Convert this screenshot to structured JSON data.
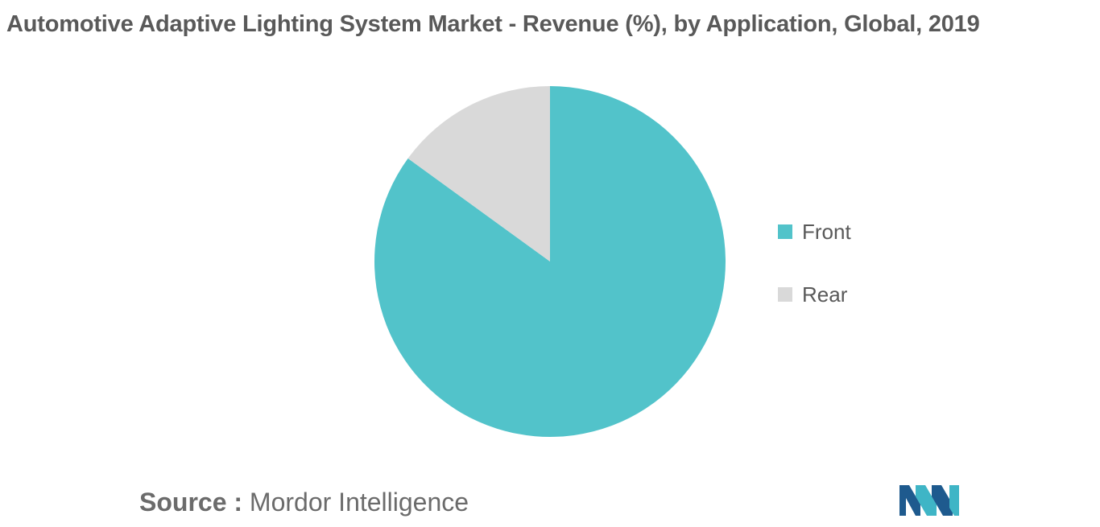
{
  "chart_data": {
    "type": "pie",
    "title": "Automotive Adaptive Lighting System Market - Revenue (%), by Application, Global, 2019",
    "slices": [
      {
        "label": "Front",
        "value": 85,
        "color": "#52c3ca"
      },
      {
        "label": "Rear",
        "value": 15,
        "color": "#d9d9d9"
      }
    ],
    "legend_position": "right"
  },
  "source": {
    "label": "Source :",
    "text": "Mordor Intelligence"
  },
  "logo": {
    "icon": "mordor-intelligence-logo-icon",
    "colors": [
      "#1e5a8e",
      "#3fb5c6"
    ]
  }
}
